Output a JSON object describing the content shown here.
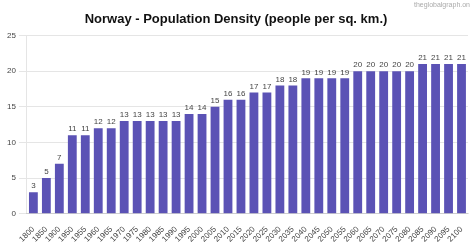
{
  "chart_data": {
    "type": "bar",
    "title": "Norway - Population Density (people per sq. km.)",
    "annotations": [
      "theglobalgraph.on"
    ],
    "categories": [
      "1800",
      "1850",
      "1900",
      "1950",
      "1955",
      "1960",
      "1965",
      "1970",
      "1975",
      "1980",
      "1985",
      "1990",
      "1995",
      "2000",
      "2005",
      "2010",
      "2015",
      "2020",
      "2025",
      "2030",
      "2035",
      "2040",
      "2045",
      "2050",
      "2055",
      "2060",
      "2065",
      "2070",
      "2075",
      "2080",
      "2085",
      "2090",
      "2095",
      "2100"
    ],
    "values": [
      3,
      5,
      7,
      11,
      11,
      12,
      12,
      13,
      13,
      13,
      13,
      13,
      14,
      14,
      15,
      16,
      16,
      17,
      17,
      18,
      18,
      19,
      19,
      19,
      19,
      20,
      20,
      20,
      20,
      20,
      21,
      21,
      21,
      21
    ],
    "color": "#5b52b5",
    "ylim": [
      0,
      25
    ],
    "yticks": [
      0,
      5,
      10,
      15,
      20,
      25
    ],
    "grid": true,
    "data_labels": true
  }
}
